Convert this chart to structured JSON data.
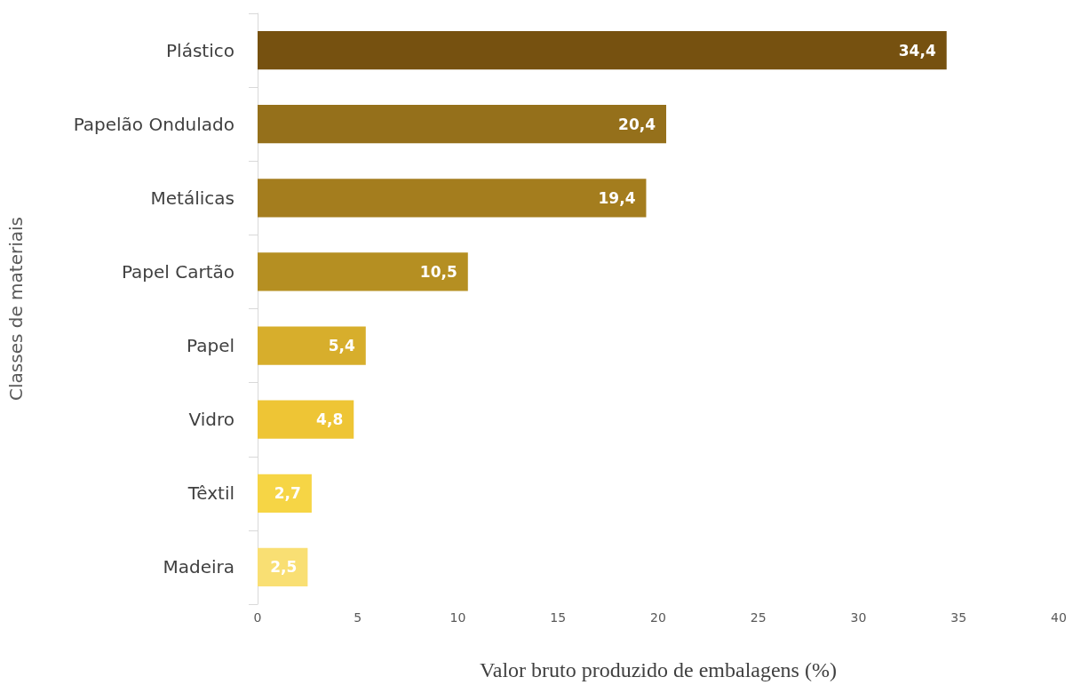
{
  "chart_data": {
    "type": "bar",
    "orientation": "horizontal",
    "xlabel": "Valor bruto produzido de embalagens (%)",
    "ylabel": "Classes de materiais",
    "categories": [
      "Plástico",
      "Papelão Ondulado",
      "Metálicas",
      "Papel Cartão",
      "Papel",
      "Vidro",
      "Têxtil",
      "Madeira"
    ],
    "values": [
      34.4,
      20.4,
      19.4,
      10.5,
      5.4,
      4.8,
      2.7,
      2.5
    ],
    "value_labels": [
      "34,4",
      "20,4",
      "19,4",
      "10,5",
      "5,4",
      "4,8",
      "2,7",
      "2,5"
    ],
    "colors": [
      "#765110",
      "#95701b",
      "#a47d1e",
      "#b58f22",
      "#d7ae2c",
      "#eec535",
      "#f6d545",
      "#f9df73"
    ],
    "xlim": [
      0,
      40
    ],
    "xticks": [
      0,
      5,
      10,
      15,
      20,
      25,
      30,
      35,
      40
    ],
    "grid": false
  }
}
